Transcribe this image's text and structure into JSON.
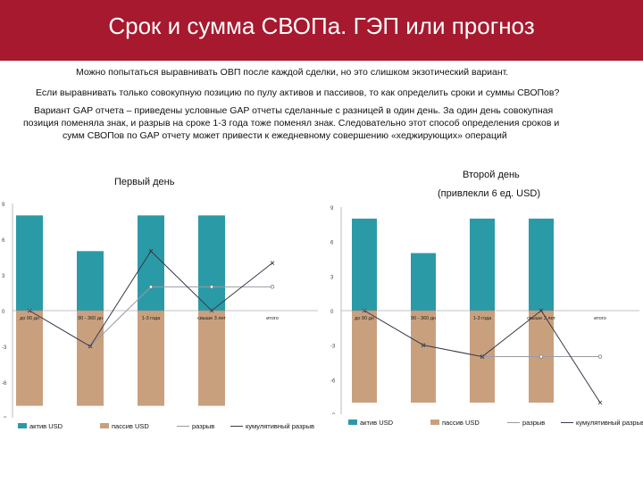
{
  "title": "Срок и сумма СВОПа. ГЭП или прогноз",
  "paragraphs": {
    "p1": "Можно попытаться выравнивать ОВП после каждой сделки, но это слишком экзотический вариант.",
    "p2": "Если выравнивать только совокупную позицию по пулу активов и пассивов, то как определить сроки и суммы СВОПов?",
    "p3_line1": "Вариант GAP отчета – приведены условные GAP отчеты сделанные с разницей в один день.  За один день совокупная",
    "p3_line2": "позиция поменяла знак, и разрыв на сроке 1-3 года тоже поменял знак. Следовательно этот способ определения  сроков  и",
    "p3_line3": "сумм СВОПов по GAP отчету может привести к ежедневному совершению «хеджирующих» операций"
  },
  "captions": {
    "day1": "Первый день",
    "day2": "Второй день",
    "day2_sub": "(привлекли 6 ед. USD)"
  },
  "colors": {
    "header": "#a6192e",
    "assets": "#2b9aa7",
    "liabilities": "#c9a07e",
    "line": "#9a9aa6"
  },
  "chart_data": [
    {
      "type": "bar",
      "categories": [
        "до 90 дн",
        "90 - 360 дн",
        "1-3 года",
        "свыше 3 лет",
        "итого"
      ],
      "ylim": [
        -9,
        9
      ],
      "yticks": [
        "9",
        "6",
        "3",
        "0",
        "-3",
        "-6",
        "-9"
      ],
      "series": [
        {
          "name": "актив USD",
          "kind": "bar",
          "values": [
            8,
            5,
            8,
            8,
            null
          ]
        },
        {
          "name": "пассив USD",
          "kind": "bar",
          "values": [
            -8,
            -8,
            -8,
            -8,
            null
          ]
        },
        {
          "name": "разрыв",
          "kind": "line",
          "values": [
            0,
            -3,
            2,
            2,
            2
          ]
        },
        {
          "name": "кумулятивный разрыв",
          "kind": "line",
          "values": [
            0,
            -3,
            5,
            0,
            4
          ]
        }
      ],
      "legend": [
        "актив USD",
        "пассив USD",
        "разрыв",
        "кумулятивный разрыв"
      ]
    },
    {
      "type": "bar",
      "categories": [
        "до 90 дн",
        "90 - 360 дн",
        "1-3 года",
        "свыше 3 лет",
        "итого"
      ],
      "ylim": [
        -9,
        9
      ],
      "yticks": [
        "9",
        "6",
        "3",
        "0",
        "-3",
        "-6",
        "-9"
      ],
      "series": [
        {
          "name": "актив USD",
          "kind": "bar",
          "values": [
            8,
            5,
            8,
            8,
            null
          ]
        },
        {
          "name": "пассив USD",
          "kind": "bar",
          "values": [
            -8,
            -8,
            -8,
            -8,
            null
          ]
        },
        {
          "name": "разрыв",
          "kind": "line",
          "values": [
            0,
            -3,
            -4,
            -4,
            -4
          ]
        },
        {
          "name": "кумулятивный разрыв",
          "kind": "line",
          "values": [
            0,
            -3,
            -4,
            0,
            -8
          ]
        }
      ],
      "legend": [
        "актив USD",
        "пассив USD",
        "разрыв",
        "кумулятивный разрыв"
      ]
    }
  ]
}
